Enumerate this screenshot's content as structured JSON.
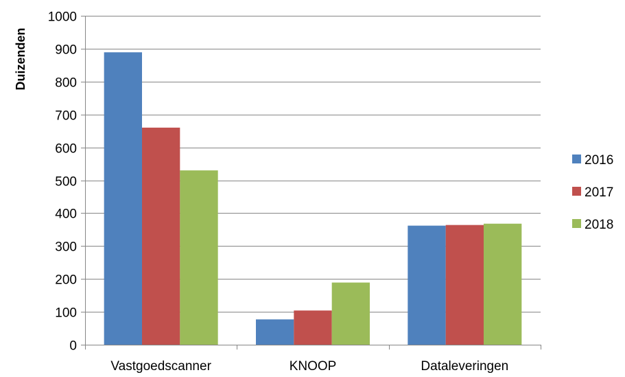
{
  "chart_data": {
    "type": "bar",
    "title": "",
    "xlabel": "",
    "ylabel": "Duizenden",
    "ylim": [
      0,
      1000
    ],
    "yticks": [
      0,
      100,
      200,
      300,
      400,
      500,
      600,
      700,
      800,
      900,
      1000
    ],
    "grid": true,
    "legend_position": "right",
    "categories": [
      "Vastgoedscanner",
      "KNOOP",
      "Dataleveringen"
    ],
    "series": [
      {
        "name": "2016",
        "color": "#4F81BD",
        "values": [
          889,
          77,
          362
        ]
      },
      {
        "name": "2017",
        "color": "#C0504D",
        "values": [
          660,
          104,
          364
        ]
      },
      {
        "name": "2018",
        "color": "#9BBB59",
        "values": [
          530,
          189,
          368
        ]
      }
    ]
  }
}
